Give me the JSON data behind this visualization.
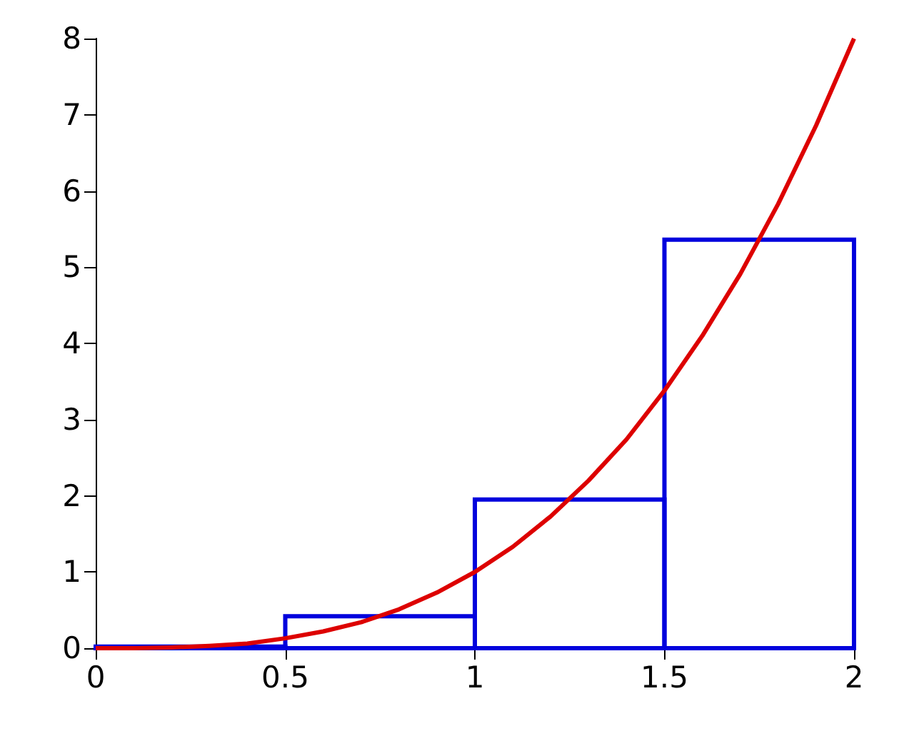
{
  "chart_data": {
    "type": "histogram",
    "bins": [
      0,
      0.5,
      1,
      1.5,
      2
    ],
    "series": [
      {
        "color": "#0000dd",
        "values": [
          0.02,
          0.42,
          1.95,
          5.36
        ]
      },
      {
        "type": "line",
        "color": "#dd0000",
        "x": [
          0,
          0.1,
          0.2,
          0.3,
          0.4,
          0.5,
          0.6,
          0.7,
          0.8,
          0.9,
          1,
          1.1,
          1.2,
          1.3,
          1.4,
          1.5,
          1.6,
          1.7,
          1.8,
          1.9,
          2
        ],
        "values": [
          0,
          0,
          0.01,
          0.03,
          0.06,
          0.13,
          0.22,
          0.34,
          0.51,
          0.73,
          1,
          1.33,
          1.73,
          2.2,
          2.74,
          3.38,
          4.1,
          4.91,
          5.83,
          6.86,
          8
        ]
      }
    ],
    "xlim": [
      0,
      2
    ],
    "xticks": [
      0,
      0.5,
      1,
      1.5,
      2
    ],
    "ylim": [
      0,
      8
    ],
    "yticks": [
      0,
      1,
      2,
      3,
      4,
      5,
      6,
      7,
      8
    ],
    "grid": false
  }
}
